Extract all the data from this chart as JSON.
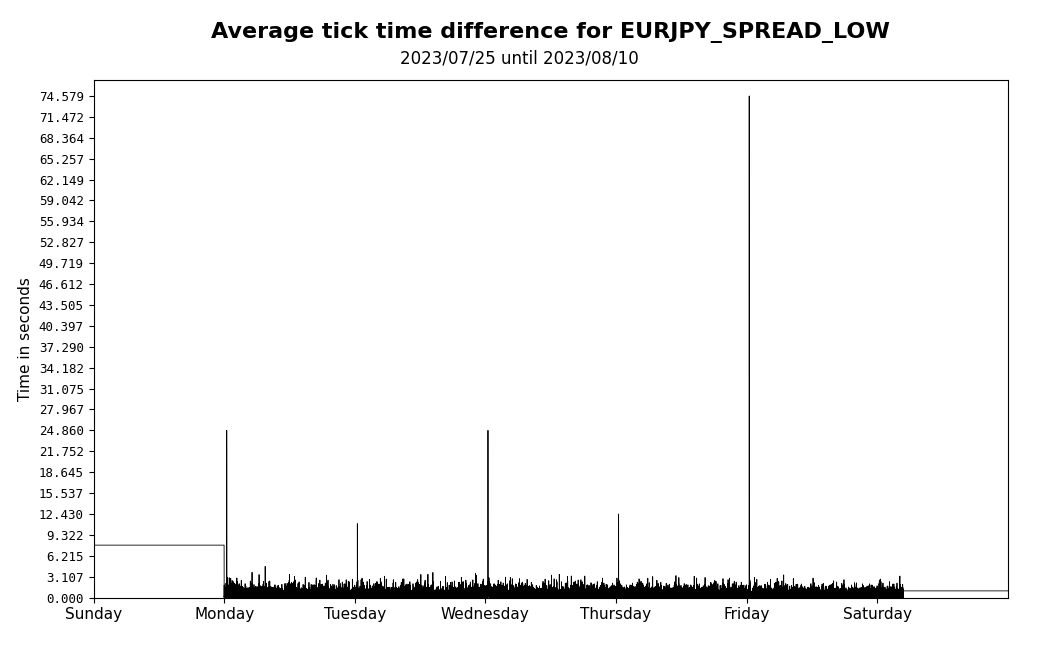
{
  "title": "Average tick time difference for EURJPY_SPREAD_LOW",
  "subtitle": "2023/07/25 until 2023/08/10",
  "ylabel": "Time in seconds",
  "xlabel": "",
  "yticks": [
    0.0,
    3.107,
    6.215,
    9.322,
    12.43,
    15.537,
    18.645,
    21.752,
    24.86,
    27.967,
    31.075,
    34.182,
    37.29,
    40.397,
    43.505,
    46.612,
    49.719,
    52.827,
    55.934,
    59.042,
    62.149,
    65.257,
    68.364,
    71.472,
    74.579
  ],
  "ytick_labels": [
    "0.000",
    "3.107",
    "6.215",
    "9.322",
    "12.430",
    "15.537",
    "18.645",
    "21.752",
    "24.860",
    "27.967",
    "31.075",
    "34.182",
    "37.290",
    "40.397",
    "43.505",
    "46.612",
    "49.719",
    "52.827",
    "55.934",
    "59.042",
    "62.149",
    "65.257",
    "68.364",
    "71.472",
    "74.579"
  ],
  "xtick_labels": [
    "Sunday",
    "Monday",
    "Tuesday",
    "Wednesday",
    "Thursday",
    "Friday",
    "Saturday"
  ],
  "xtick_positions": [
    0,
    1,
    2,
    3,
    4,
    5,
    6
  ],
  "line_color": "black",
  "background_color": "white",
  "title_fontsize": 16,
  "subtitle_fontsize": 12,
  "ylim": [
    0.0,
    77.0
  ],
  "xlim": [
    0,
    7
  ],
  "num_points": 50000,
  "sunday_flat_value": 7.8,
  "sunday_flat_end_day": 1.0,
  "saturday_flat_value": 1.0,
  "saturday_flat_start_day": 6.2,
  "monday_spike_day": 1.02,
  "monday_spike_val": 24.86,
  "tuesday_spike_day": 2.02,
  "tuesday_spike_val": 11.0,
  "wednesday_spike_day": 3.02,
  "wednesday_spike_val": 24.86,
  "thursday_spike_day": 4.02,
  "thursday_spike_val": 12.43,
  "friday_spike_day": 5.02,
  "friday_spike_val": 74.579,
  "friday_small_spike_day": 5.55,
  "friday_small_spike_val": 1.8,
  "base_noise_scale": 0.4,
  "noise_seed": 99
}
